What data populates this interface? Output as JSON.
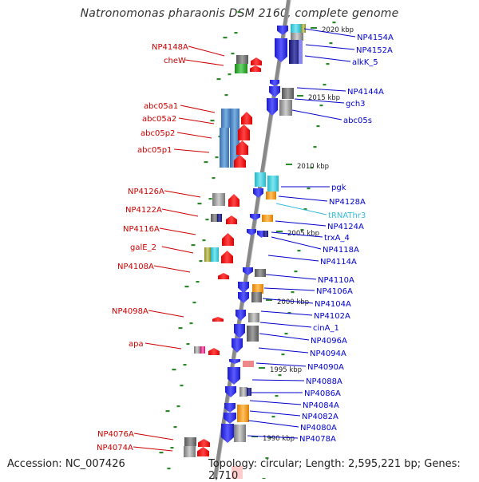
{
  "title": "Natronomonas pharaonis DSM 2160, complete genome",
  "footer": {
    "accession": "Accession: NC_007426",
    "summary": "Topology: circular; Length: 2,595,221 bp; Genes: 2,710"
  },
  "colors": {
    "left_label": "#cc0000",
    "right_label": "#0000cc",
    "trna_label": "#33bbdd",
    "reverse_gene": "#ff0000",
    "forward_gene": "#1a1aee",
    "backbone": "#888888",
    "tick": "#2a8a2a"
  },
  "scale_labels": [
    "2020 kbp",
    "2015 kbp",
    "2010 kbp",
    "2005 kbp",
    "2000 kbp",
    "1995 kbp",
    "1990 kbp"
  ],
  "left_labels": [
    "NP4148A",
    "cheW",
    "abc05a1",
    "abc05a2",
    "abc05p2",
    "abc05p1",
    "NP4126A",
    "NP4122A",
    "NP4116A",
    "galE_2",
    "NP4108A",
    "NP4098A",
    "apa",
    "NP4076A",
    "NP4074A"
  ],
  "right_labels": [
    "NP4154A",
    "NP4152A",
    "alkK_5",
    "NP4144A",
    "gch3",
    "abc05s",
    "pgk",
    "NP4128A",
    "tRNAThr3",
    "NP4124A",
    "trxA_4",
    "NP4118A",
    "NP4114A",
    "NP4110A",
    "NP4106A",
    "NP4104A",
    "NP4102A",
    "cinA_1",
    "NP4096A",
    "NP4094A",
    "NP4090A",
    "NP4088A",
    "NP4086A",
    "NP4084A",
    "NP4082A",
    "NP4080A",
    "NP4078A"
  ]
}
